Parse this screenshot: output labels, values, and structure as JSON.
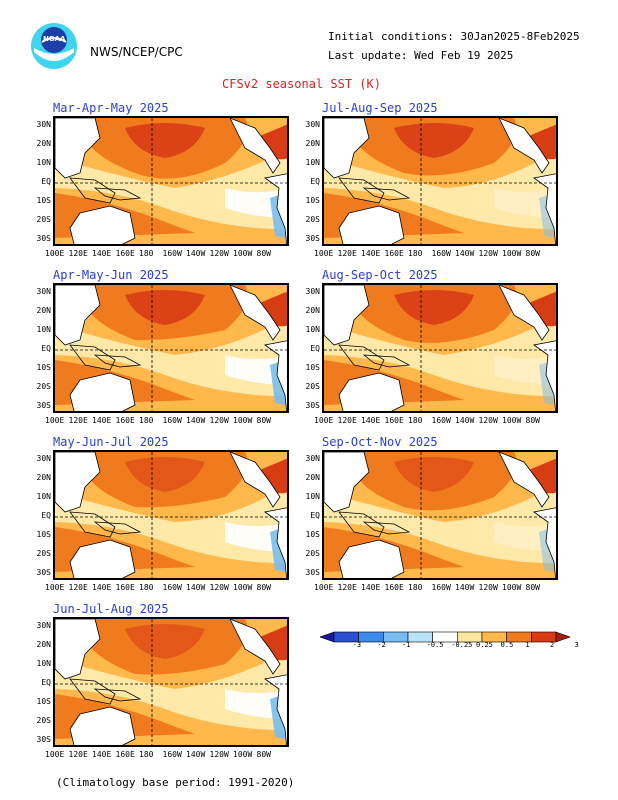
{
  "header": {
    "org": "NWS/NCEP/CPC",
    "logo_text": "NOAA",
    "init": "Initial conditions: 30Jan2025-8Feb2025",
    "update": "Last update: Wed Feb 19 2025",
    "title": "CFSv2 seasonal SST (K)",
    "footer": "(Climatology base period: 1991-2020)"
  },
  "panels": [
    {
      "label": "Mar-Apr-May 2025"
    },
    {
      "label": "Jul-Aug-Sep 2025"
    },
    {
      "label": "Apr-May-Jun 2025"
    },
    {
      "label": "Aug-Sep-Oct 2025"
    },
    {
      "label": "May-Jun-Jul 2025"
    },
    {
      "label": "Sep-Oct-Nov 2025"
    },
    {
      "label": "Jun-Jul-Aug 2025"
    }
  ],
  "axes": {
    "lats": [
      "30N",
      "20N",
      "10N",
      "EQ",
      "10S",
      "20S",
      "30S"
    ],
    "lons": [
      "100E",
      "120E",
      "140E",
      "160E",
      "180",
      "160W",
      "140W",
      "120W",
      "100W",
      "80W"
    ]
  },
  "colorbar": {
    "labels": [
      "-3",
      "-2",
      "-1",
      "-0.5",
      "-0.25",
      "0.25",
      "0.5",
      "1",
      "2",
      "3"
    ],
    "colors": [
      "#1a1aa0",
      "#2850d0",
      "#3c8cec",
      "#78bcf0",
      "#b8e4f8",
      "#ffffff",
      "#ffe6a0",
      "#ffb84c",
      "#f07a1e",
      "#d83c14",
      "#a51e14"
    ]
  }
}
